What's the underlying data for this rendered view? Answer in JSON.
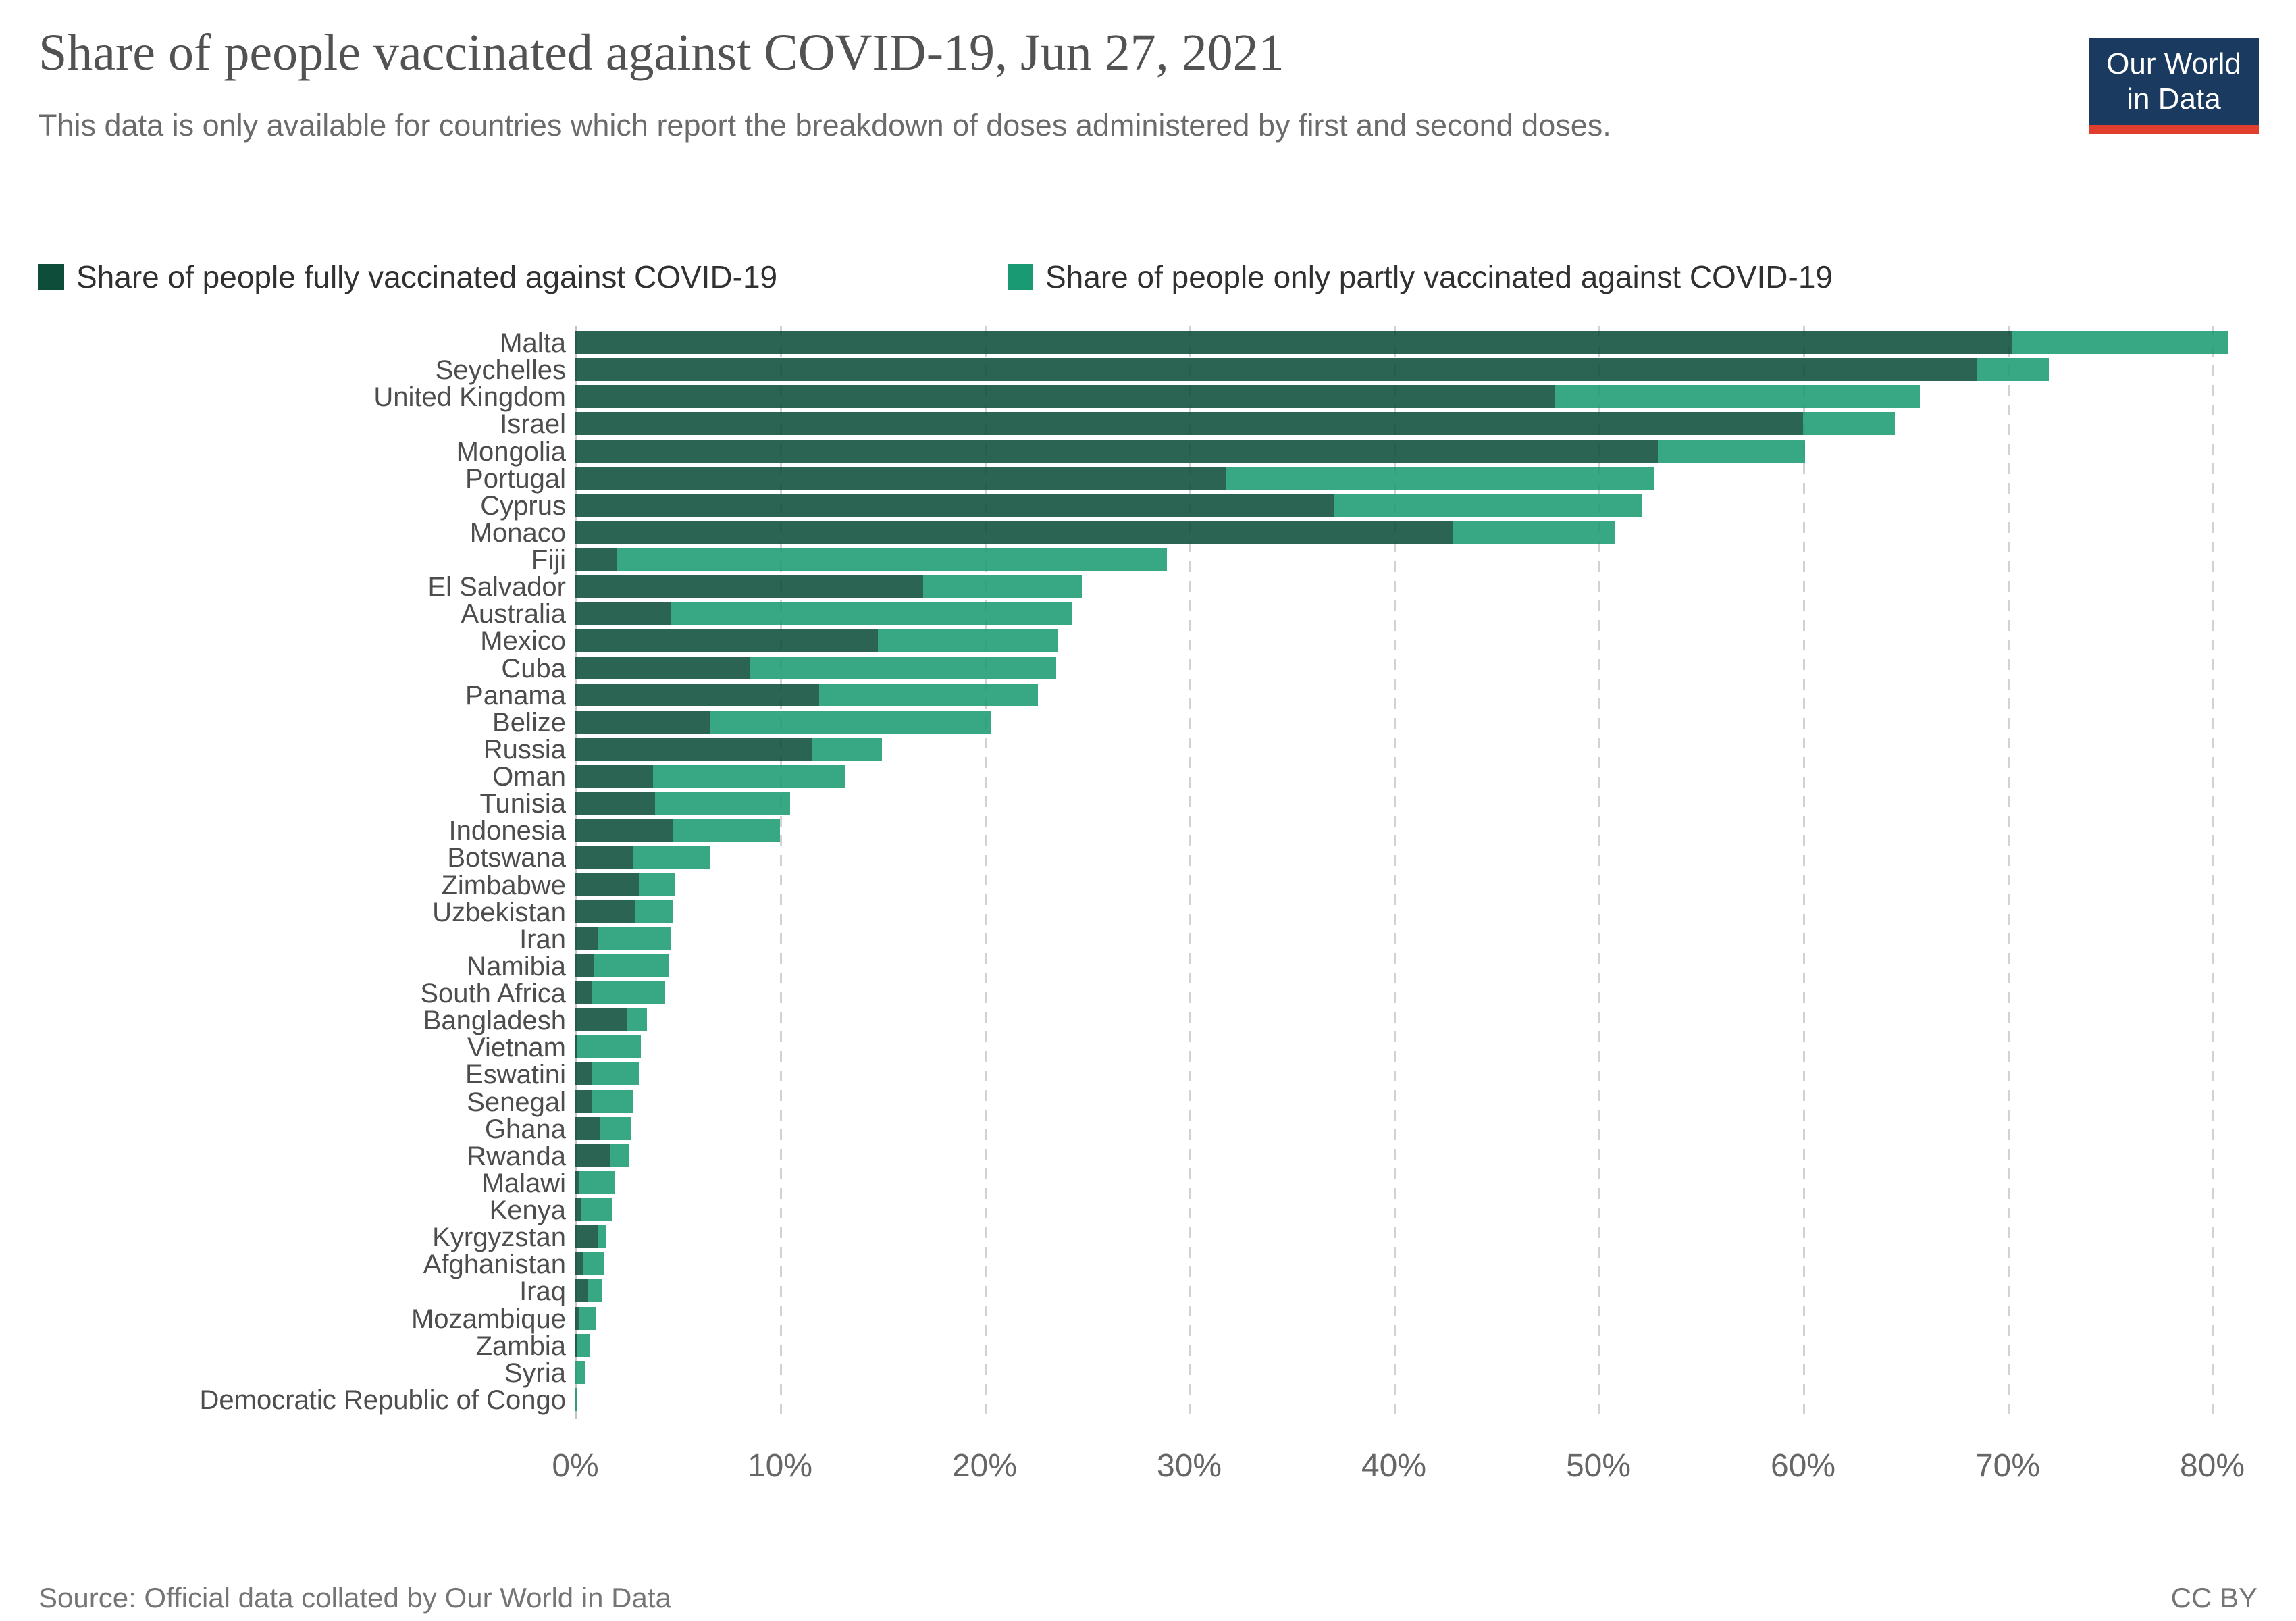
{
  "header": {
    "title": "Share of people vaccinated against COVID-19, Jun 27, 2021",
    "subtitle": "This data is only available for countries which report the breakdown of doses administered by first and second doses.",
    "logo": {
      "line1": "Our World",
      "line2": "in Data",
      "bg_color": "#1a3a5f",
      "accent_color": "#e23e2d"
    }
  },
  "legend": {
    "items": [
      {
        "label": "Share of people fully vaccinated against COVID-19",
        "color": "#0d4d3a"
      },
      {
        "label": "Share of people only partly vaccinated against COVID-19",
        "color": "#1a9a72"
      }
    ]
  },
  "footer": {
    "source": "Source: Official data collated by Our World in Data",
    "license": "CC BY"
  },
  "chart_data": {
    "type": "bar",
    "orientation": "horizontal",
    "stacked": true,
    "title": "Share of people vaccinated against COVID-19, Jun 27, 2021",
    "xlabel": "",
    "ylabel": "",
    "xlim": [
      0,
      82
    ],
    "grid": "vertical-dashed",
    "legend_position": "top",
    "x_ticks": [
      "0%",
      "10%",
      "20%",
      "30%",
      "40%",
      "50%",
      "60%",
      "70%",
      "80%"
    ],
    "x_tick_values": [
      0,
      10,
      20,
      30,
      40,
      50,
      60,
      70,
      80
    ],
    "categories": [
      "Malta",
      "Seychelles",
      "United Kingdom",
      "Israel",
      "Mongolia",
      "Portugal",
      "Cyprus",
      "Monaco",
      "Fiji",
      "El Salvador",
      "Australia",
      "Mexico",
      "Cuba",
      "Panama",
      "Belize",
      "Russia",
      "Oman",
      "Tunisia",
      "Indonesia",
      "Botswana",
      "Zimbabwe",
      "Uzbekistan",
      "Iran",
      "Namibia",
      "South Africa",
      "Bangladesh",
      "Vietnam",
      "Eswatini",
      "Senegal",
      "Ghana",
      "Rwanda",
      "Malawi",
      "Kenya",
      "Kyrgyzstan",
      "Afghanistan",
      "Iraq",
      "Mozambique",
      "Zambia",
      "Syria",
      "Democratic Republic of Congo"
    ],
    "series": [
      {
        "name": "Share of people fully vaccinated against COVID-19",
        "color": "#0d4d3a",
        "values": [
          70.2,
          68.5,
          47.9,
          60.0,
          52.9,
          31.8,
          37.1,
          42.9,
          2.0,
          17.0,
          4.7,
          14.8,
          8.5,
          11.9,
          6.6,
          11.6,
          3.8,
          3.9,
          4.8,
          2.8,
          3.1,
          2.9,
          1.1,
          0.9,
          0.8,
          2.5,
          0.1,
          0.8,
          0.8,
          1.2,
          1.7,
          0.15,
          0.3,
          1.1,
          0.4,
          0.6,
          0.2,
          0.05,
          0.0,
          0.0
        ]
      },
      {
        "name": "Share of people only partly vaccinated against COVID-19",
        "color": "#1a9a72",
        "values": [
          10.6,
          3.5,
          17.8,
          4.5,
          7.2,
          20.9,
          15.0,
          7.9,
          26.9,
          7.8,
          19.6,
          8.8,
          15.0,
          10.7,
          13.7,
          3.4,
          9.4,
          6.6,
          5.2,
          3.8,
          1.8,
          1.9,
          3.6,
          3.7,
          3.6,
          1.0,
          3.1,
          2.3,
          2.0,
          1.5,
          0.9,
          1.75,
          1.5,
          0.4,
          1.0,
          0.7,
          0.8,
          0.65,
          0.5,
          0.05
        ]
      }
    ]
  }
}
